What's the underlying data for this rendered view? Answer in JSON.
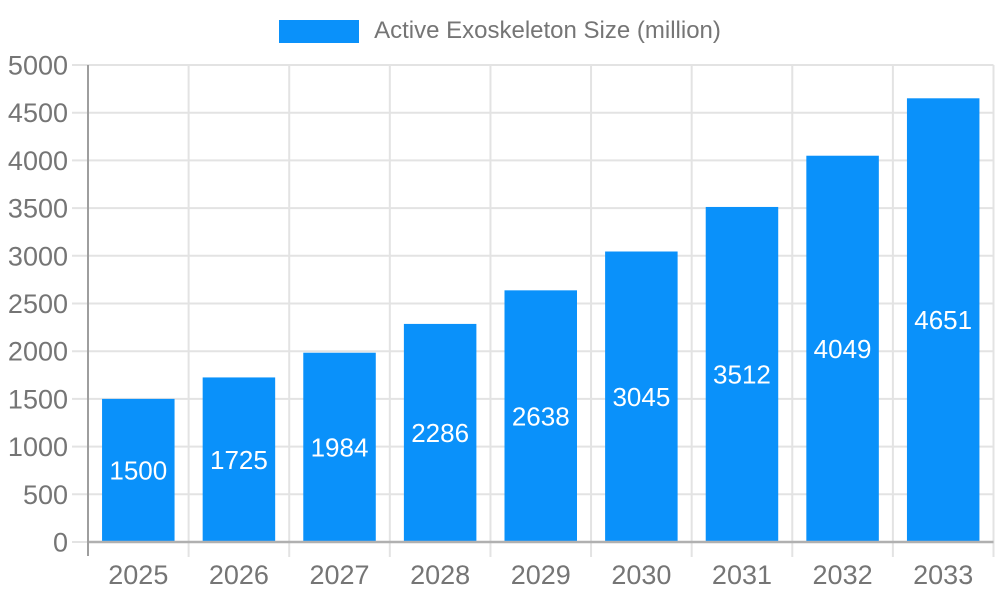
{
  "chart_data": {
    "type": "bar",
    "title": "Active Exoskeleton Size (million)",
    "legend": [
      "Active Exoskeleton Size (million)"
    ],
    "legend_position": "top-center",
    "categories": [
      "2025",
      "2026",
      "2027",
      "2028",
      "2029",
      "2030",
      "2031",
      "2032",
      "2033"
    ],
    "series": [
      {
        "name": "Active Exoskeleton Size (million)",
        "values": [
          1500,
          1725,
          1984,
          2286,
          2638,
          3045,
          3512,
          4049,
          4651
        ]
      }
    ],
    "bar_value_labels": [
      1500,
      1725,
      1984,
      2286,
      2638,
      3045,
      3512,
      4049,
      4651
    ],
    "xlabel": "",
    "ylabel": "",
    "ylim": [
      0,
      5000
    ],
    "ytick_step": 500,
    "yticks": [
      "0",
      "500",
      "1000",
      "1500",
      "2000",
      "2500",
      "3000",
      "3500",
      "4000",
      "4500",
      "5000"
    ],
    "grid": true,
    "colors": {
      "bar": "#0a91fa",
      "bar_label": "#ffffff",
      "axis_text": "#757575",
      "legend_text": "#757575",
      "grid_line": "#e3e3e3",
      "y_axis_line": "#9e9e9e",
      "x_axis_line": "#b0b0b0",
      "background": "#ffffff"
    }
  }
}
